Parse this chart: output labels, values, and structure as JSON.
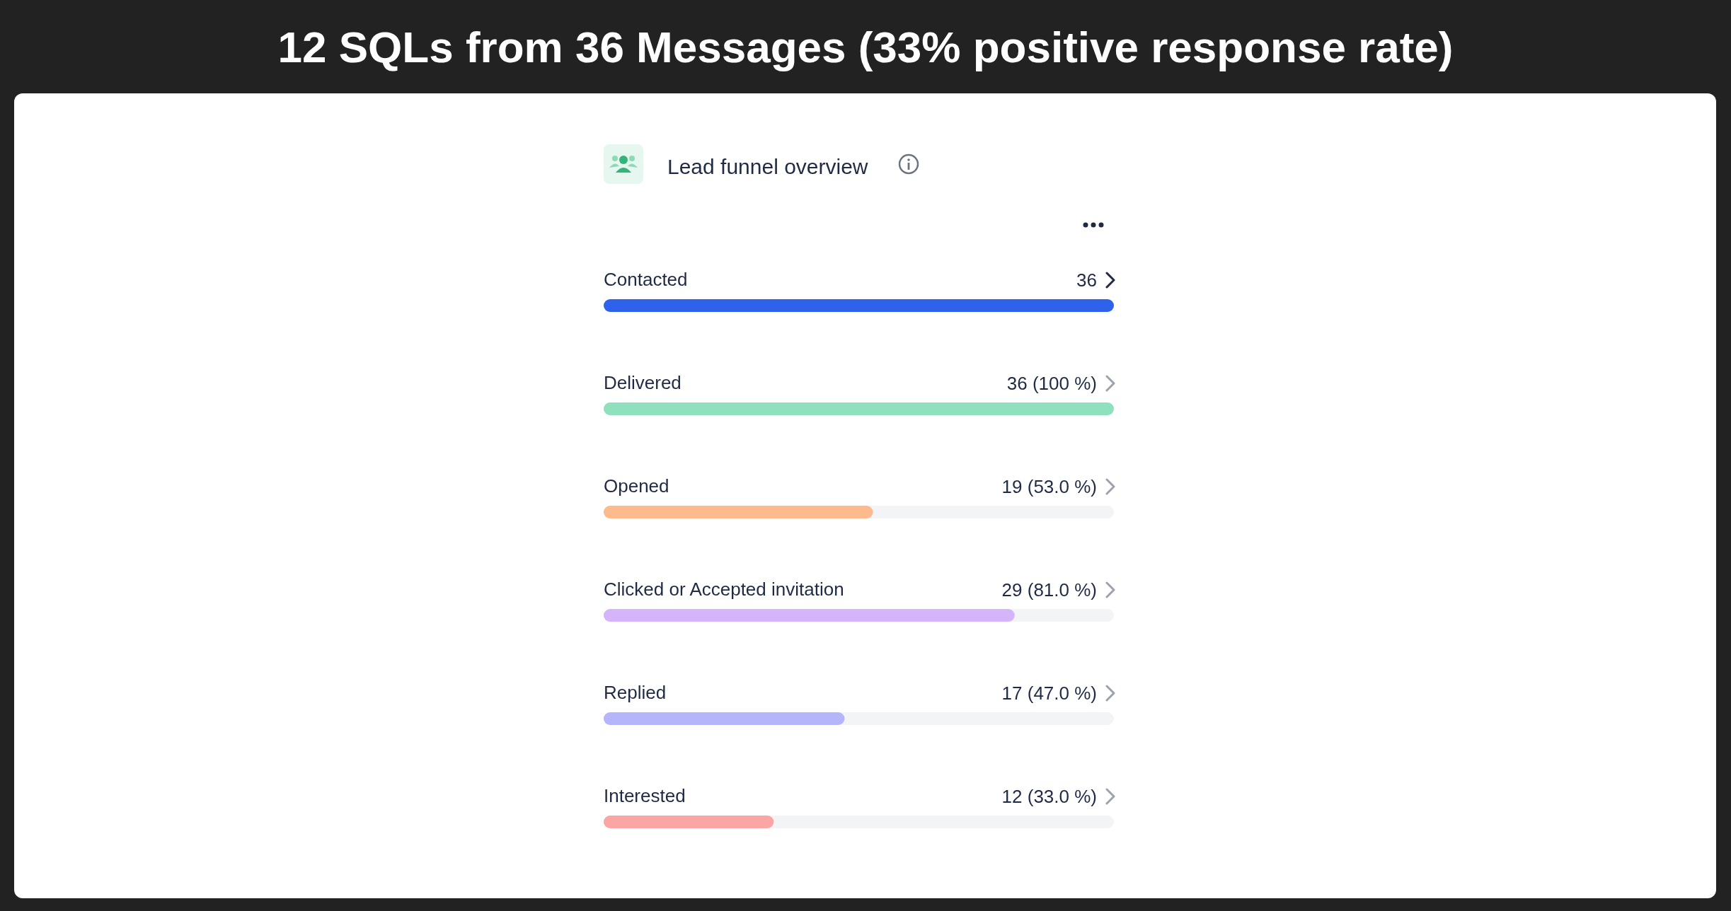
{
  "chart_data": {
    "type": "bar",
    "orientation": "horizontal",
    "title": "12 SQLs from 36 Messages (33% positive response rate)",
    "subtitle": "Lead funnel overview",
    "categories": [
      "Contacted",
      "Delivered",
      "Opened",
      "Clicked or Accepted invitation",
      "Replied",
      "Interested"
    ],
    "values": [
      36,
      36,
      19,
      29,
      17,
      12
    ],
    "value_labels": [
      "36",
      "36 (100 %)",
      "19 (53.0 %)",
      "29 (81.0 %)",
      "17 (47.0 %)",
      "12 (33.0 %)"
    ],
    "colors": [
      "#2f62ec",
      "#8fe0bd",
      "#fdba8c",
      "#d5b4fb",
      "#b4b5fb",
      "#fca5a5"
    ]
  }
}
